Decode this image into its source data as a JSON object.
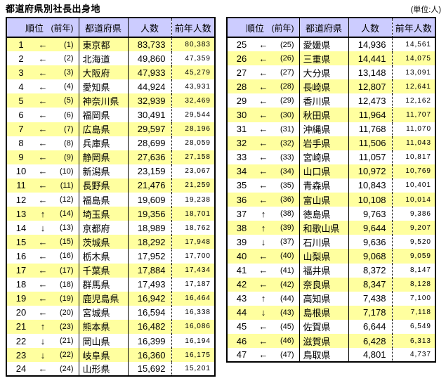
{
  "header": {
    "title": "都道府県別社長出身地",
    "unit_note": "(単位:人)"
  },
  "columns": {
    "rank": "順位",
    "prev_rank": "(前年)",
    "prefecture": "都道府県",
    "count": "人数",
    "prev_count": "前年人数"
  },
  "colors": {
    "header_bg": "#CCCCFF",
    "row_band_yellow": "#FFFF9F",
    "row_band_white": "#FFFFFF",
    "border": "#000000"
  },
  "chart_data": {
    "type": "table",
    "title": "都道府県別社長出身地",
    "unit": "人",
    "columns": [
      "順位",
      "(前年)",
      "都道府県",
      "人数",
      "前年人数"
    ],
    "tables": [
      {
        "position": "left",
        "first_row_band": "yellow",
        "rows": [
          [
            "1",
            "←",
            "(1)",
            "東京都",
            "83,733",
            "80,383"
          ],
          [
            "2",
            "←",
            "(2)",
            "北海道",
            "49,860",
            "47,359"
          ],
          [
            "3",
            "←",
            "(3)",
            "大阪府",
            "47,933",
            "45,279"
          ],
          [
            "4",
            "←",
            "(4)",
            "愛知県",
            "44,924",
            "43,931"
          ],
          [
            "5",
            "←",
            "(5)",
            "神奈川県",
            "32,939",
            "32,469"
          ],
          [
            "6",
            "←",
            "(6)",
            "福岡県",
            "30,491",
            "29,544"
          ],
          [
            "7",
            "←",
            "(7)",
            "広島県",
            "29,597",
            "28,196"
          ],
          [
            "8",
            "←",
            "(8)",
            "兵庫県",
            "28,699",
            "28,059"
          ],
          [
            "9",
            "←",
            "(9)",
            "静岡県",
            "27,636",
            "27,158"
          ],
          [
            "10",
            "←",
            "(10)",
            "新潟県",
            "23,159",
            "23,067"
          ],
          [
            "11",
            "←",
            "(11)",
            "長野県",
            "21,476",
            "21,259"
          ],
          [
            "12",
            "←",
            "(12)",
            "福島県",
            "19,609",
            "19,238"
          ],
          [
            "13",
            "↑",
            "(14)",
            "埼玉県",
            "19,356",
            "18,701"
          ],
          [
            "14",
            "↓",
            "(13)",
            "京都府",
            "18,989",
            "18,762"
          ],
          [
            "15",
            "←",
            "(15)",
            "茨城県",
            "18,292",
            "17,948"
          ],
          [
            "16",
            "←",
            "(16)",
            "栃木県",
            "17,952",
            "17,700"
          ],
          [
            "17",
            "←",
            "(17)",
            "千葉県",
            "17,884",
            "17,434"
          ],
          [
            "18",
            "←",
            "(18)",
            "群馬県",
            "17,493",
            "17,187"
          ],
          [
            "19",
            "←",
            "(19)",
            "鹿児島県",
            "16,942",
            "16,464"
          ],
          [
            "20",
            "←",
            "(20)",
            "宮城県",
            "16,594",
            "16,338"
          ],
          [
            "21",
            "↑",
            "(23)",
            "熊本県",
            "16,482",
            "16,086"
          ],
          [
            "22",
            "↓",
            "(21)",
            "岡山県",
            "16,399",
            "16,194"
          ],
          [
            "23",
            "↓",
            "(22)",
            "岐阜県",
            "16,360",
            "16,175"
          ],
          [
            "24",
            "←",
            "(24)",
            "山形県",
            "15,692",
            "15,201"
          ]
        ]
      },
      {
        "position": "right",
        "first_row_band": "white",
        "rows": [
          [
            "25",
            "←",
            "(25)",
            "愛媛県",
            "14,936",
            "14,561"
          ],
          [
            "26",
            "←",
            "(26)",
            "三重県",
            "14,441",
            "14,075"
          ],
          [
            "27",
            "←",
            "(27)",
            "大分県",
            "13,148",
            "13,091"
          ],
          [
            "28",
            "←",
            "(28)",
            "長崎県",
            "12,807",
            "12,641"
          ],
          [
            "29",
            "←",
            "(29)",
            "香川県",
            "12,473",
            "12,162"
          ],
          [
            "30",
            "←",
            "(30)",
            "秋田県",
            "11,964",
            "11,707"
          ],
          [
            "31",
            "←",
            "(31)",
            "沖縄県",
            "11,768",
            "11,070"
          ],
          [
            "32",
            "←",
            "(32)",
            "岩手県",
            "11,506",
            "11,043"
          ],
          [
            "33",
            "←",
            "(33)",
            "宮崎県",
            "11,057",
            "10,817"
          ],
          [
            "34",
            "←",
            "(34)",
            "山口県",
            "10,972",
            "10,769"
          ],
          [
            "35",
            "←",
            "(35)",
            "青森県",
            "10,843",
            "10,401"
          ],
          [
            "36",
            "←",
            "(36)",
            "富山県",
            "10,108",
            "10,014"
          ],
          [
            "37",
            "↑",
            "(38)",
            "徳島県",
            "9,763",
            "9,386"
          ],
          [
            "38",
            "↑",
            "(39)",
            "和歌山県",
            "9,644",
            "9,207"
          ],
          [
            "39",
            "↓",
            "(37)",
            "石川県",
            "9,636",
            "9,520"
          ],
          [
            "40",
            "←",
            "(40)",
            "山梨県",
            "9,068",
            "9,059"
          ],
          [
            "41",
            "←",
            "(41)",
            "福井県",
            "8,372",
            "8,147"
          ],
          [
            "42",
            "←",
            "(42)",
            "奈良県",
            "8,347",
            "8,128"
          ],
          [
            "43",
            "↑",
            "(44)",
            "高知県",
            "7,438",
            "7,100"
          ],
          [
            "44",
            "↓",
            "(43)",
            "島根県",
            "7,178",
            "7,118"
          ],
          [
            "45",
            "←",
            "(45)",
            "佐賀県",
            "6,644",
            "6,549"
          ],
          [
            "46",
            "←",
            "(46)",
            "滋賀県",
            "6,428",
            "6,313"
          ],
          [
            "47",
            "←",
            "(47)",
            "鳥取県",
            "4,801",
            "4,737"
          ]
        ]
      }
    ]
  }
}
